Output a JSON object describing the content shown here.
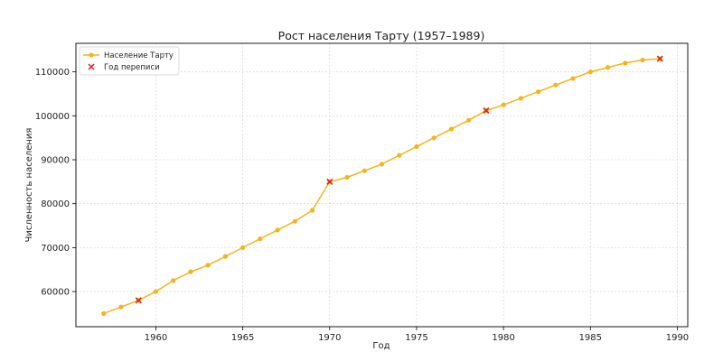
{
  "chart_data": {
    "type": "line",
    "title": "Рост населения Тарту (1957–1989)",
    "xlabel": "Год",
    "ylabel": "Численность населения",
    "xlim": [
      1955.4,
      1990.6
    ],
    "ylim": [
      52000,
      116500
    ],
    "xticks": [
      1960,
      1965,
      1970,
      1975,
      1980,
      1985,
      1990
    ],
    "yticks": [
      60000,
      70000,
      80000,
      90000,
      100000,
      110000
    ],
    "grid": true,
    "legend_position": "top-left",
    "colors": {
      "line": "#f5b41a",
      "census": "#dd2020"
    },
    "series": [
      {
        "name": "Население Тарту",
        "x": [
          1957,
          1958,
          1959,
          1960,
          1961,
          1962,
          1963,
          1964,
          1965,
          1966,
          1967,
          1968,
          1969,
          1970,
          1971,
          1972,
          1973,
          1974,
          1975,
          1976,
          1977,
          1978,
          1979,
          1980,
          1981,
          1982,
          1983,
          1984,
          1985,
          1986,
          1987,
          1988,
          1989
        ],
        "values": [
          55000,
          56500,
          58000,
          60000,
          62500,
          64500,
          66000,
          68000,
          70000,
          72000,
          74000,
          76000,
          78500,
          85000,
          86000,
          87500,
          89000,
          91000,
          93000,
          95000,
          97000,
          99000,
          101200,
          102500,
          104000,
          105500,
          107000,
          108500,
          110000,
          111000,
          112000,
          112700,
          113000
        ]
      },
      {
        "name": "Год переписи",
        "x": [
          1959,
          1970,
          1979,
          1989
        ],
        "values": [
          58000,
          85000,
          101200,
          113000
        ]
      }
    ]
  }
}
